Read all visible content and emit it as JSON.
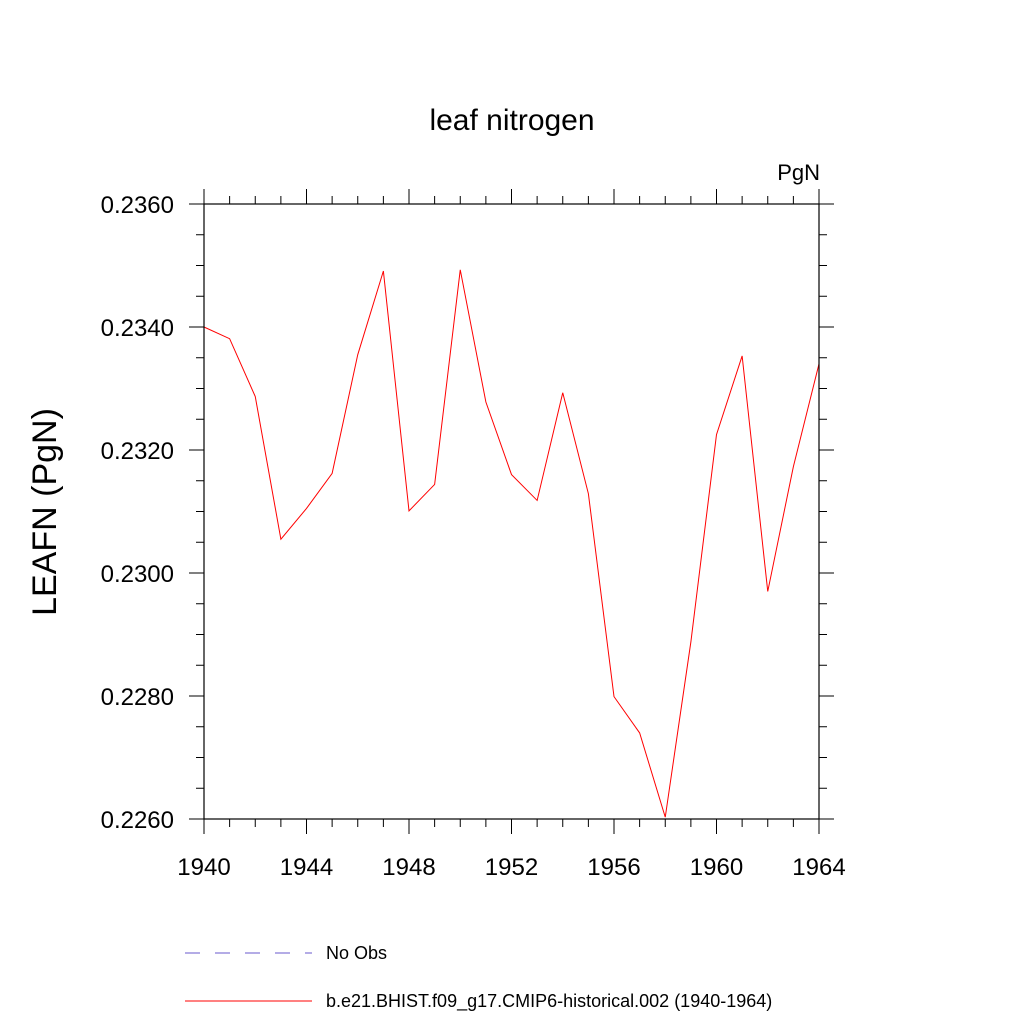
{
  "chart_data": {
    "type": "line",
    "title": "leaf nitrogen",
    "units_label": "PgN",
    "ylabel": "LEAFN  (PgN)",
    "xlabel": "",
    "xlim": [
      1940,
      1964
    ],
    "ylim": [
      0.226,
      0.236
    ],
    "x_ticks": [
      "1940",
      "1944",
      "1948",
      "1952",
      "1956",
      "1960",
      "1964"
    ],
    "y_ticks": [
      "0.2260",
      "0.2280",
      "0.2300",
      "0.2320",
      "0.2340",
      "0.2360"
    ],
    "grid": false,
    "legend_position": "bottom",
    "series": [
      {
        "name": "b.e21.BHIST.f09_g17.CMIP6-historical.002 (1940-1964)",
        "color": "#ff0000",
        "style": "solid",
        "x": [
          1940,
          1941,
          1942,
          1943,
          1944,
          1945,
          1946,
          1947,
          1948,
          1949,
          1950,
          1951,
          1952,
          1953,
          1954,
          1955,
          1956,
          1957,
          1958,
          1959,
          1960,
          1961,
          1962,
          1963,
          1964
        ],
        "values": [
          0.234,
          0.23381,
          0.23287,
          0.23055,
          0.23105,
          0.23162,
          0.23355,
          0.23491,
          0.23101,
          0.23144,
          0.23493,
          0.23278,
          0.2316,
          0.23118,
          0.23293,
          0.23129,
          0.22799,
          0.2274,
          0.22603,
          0.22888,
          0.23225,
          0.23353,
          0.2297,
          0.23173,
          0.2334
        ]
      }
    ],
    "legend": [
      {
        "label": "No Obs",
        "color": "#6a5acd",
        "style": "dashed"
      },
      {
        "label": "b.e21.BHIST.f09_g17.CMIP6-historical.002 (1940-1964)",
        "color": "#ff0000",
        "style": "solid"
      }
    ]
  }
}
